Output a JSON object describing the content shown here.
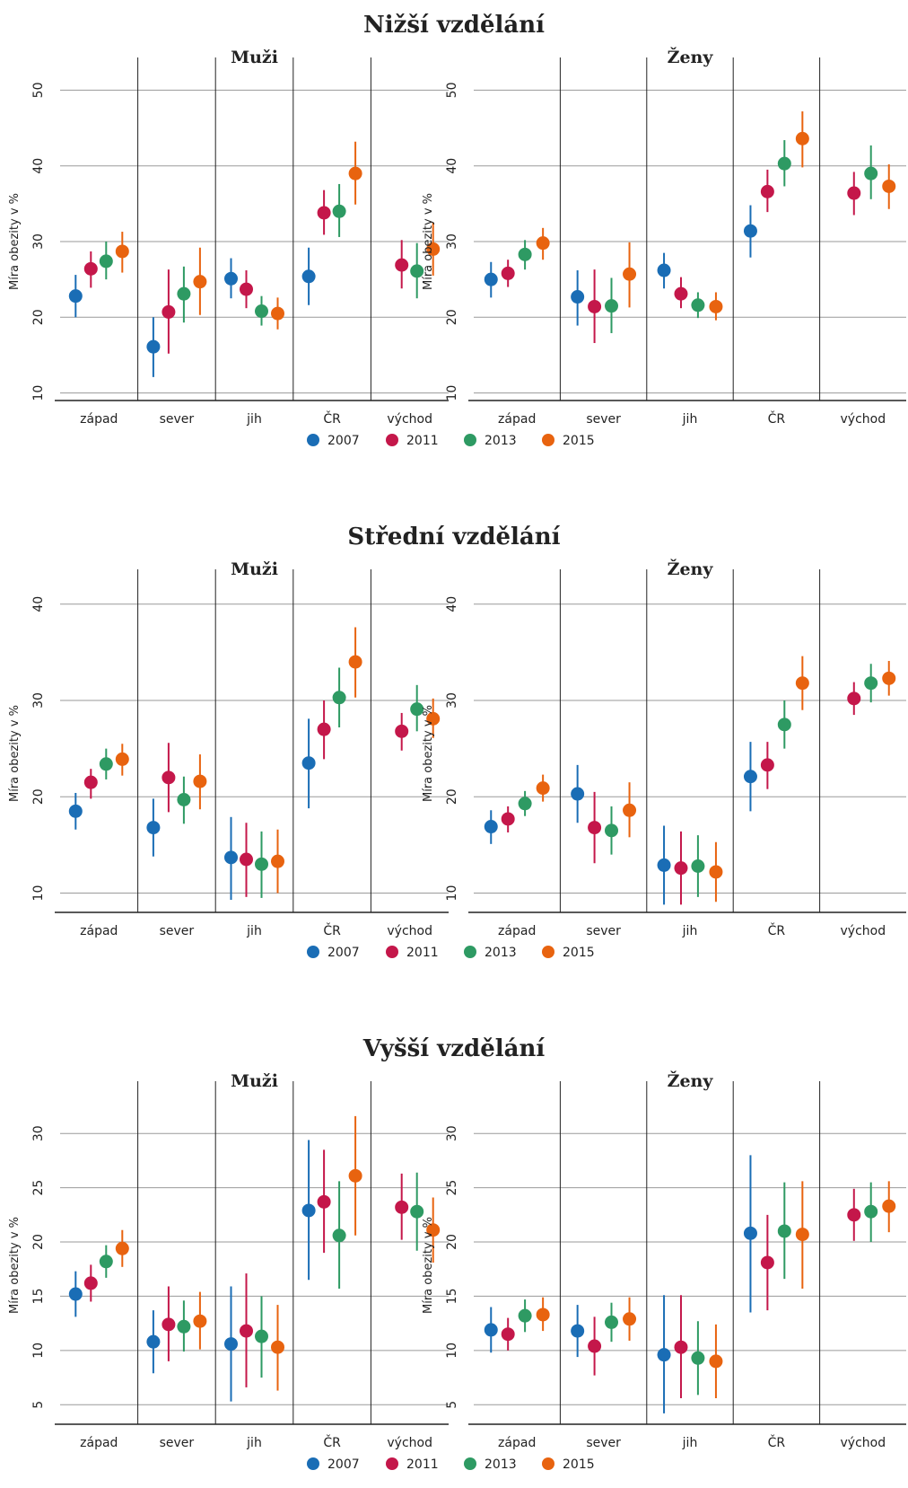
{
  "colors": {
    "2007": "#1a6db5",
    "2011": "#c4174a",
    "2013": "#2e9a63",
    "2015": "#e8630f",
    "grid": "#9a9a9a",
    "axis": "#222222"
  },
  "chart_data": [
    {
      "type": "scatter",
      "title": "Nižší vzdělání",
      "ylabel": "Míra obezity v %",
      "categories": [
        "západ",
        "sever",
        "jih",
        "ČR",
        "východ"
      ],
      "legend": [
        "2007",
        "2011",
        "2013",
        "2015"
      ],
      "legend_position": "bottom",
      "ylim": [
        9,
        51
      ],
      "yticks": [
        10,
        20,
        30,
        40,
        50
      ],
      "panels": [
        {
          "title": "Muži",
          "series": [
            {
              "name": "2007",
              "values": [
                22.8,
                16.1,
                25.1,
                25.4,
                null
              ],
              "low": [
                20.0,
                12.1,
                22.5,
                21.6,
                null
              ],
              "high": [
                25.6,
                20.0,
                27.8,
                29.2,
                null
              ]
            },
            {
              "name": "2011",
              "values": [
                26.4,
                20.7,
                23.7,
                33.8,
                26.9
              ],
              "low": [
                23.9,
                15.2,
                21.2,
                30.9,
                23.8
              ],
              "high": [
                28.7,
                26.3,
                26.2,
                36.8,
                30.2
              ]
            },
            {
              "name": "2013",
              "values": [
                27.4,
                23.1,
                20.8,
                34.0,
                26.1
              ],
              "low": [
                25.0,
                19.3,
                18.9,
                30.6,
                22.5
              ],
              "high": [
                30.0,
                26.7,
                22.8,
                37.6,
                29.8
              ]
            },
            {
              "name": "2015",
              "values": [
                28.7,
                24.7,
                20.5,
                39.0,
                29.0
              ],
              "low": [
                25.9,
                20.3,
                18.4,
                34.9,
                25.5
              ],
              "high": [
                31.3,
                29.2,
                22.6,
                43.2,
                32.5
              ]
            }
          ]
        },
        {
          "title": "Ženy",
          "series": [
            {
              "name": "2007",
              "values": [
                25.0,
                22.7,
                26.2,
                31.4,
                null
              ],
              "low": [
                22.6,
                18.9,
                23.8,
                27.9,
                null
              ],
              "high": [
                27.3,
                26.2,
                28.5,
                34.8,
                null
              ]
            },
            {
              "name": "2011",
              "values": [
                25.8,
                21.4,
                23.1,
                36.6,
                36.4
              ],
              "low": [
                24.0,
                16.6,
                21.2,
                33.9,
                33.5
              ],
              "high": [
                27.6,
                26.3,
                25.3,
                39.5,
                39.2
              ]
            },
            {
              "name": "2013",
              "values": [
                28.3,
                21.5,
                21.6,
                40.3,
                39.0
              ],
              "low": [
                26.3,
                17.9,
                19.9,
                37.3,
                35.6
              ],
              "high": [
                30.2,
                25.2,
                23.3,
                43.4,
                42.7
              ]
            },
            {
              "name": "2015",
              "values": [
                29.8,
                25.7,
                21.4,
                43.6,
                37.3
              ],
              "low": [
                27.6,
                21.3,
                19.6,
                39.8,
                34.3
              ],
              "high": [
                31.8,
                29.9,
                23.3,
                47.2,
                40.2
              ]
            }
          ]
        }
      ]
    },
    {
      "type": "scatter",
      "title": "Střední vzdělání",
      "ylabel": "Míra obezity v %",
      "categories": [
        "západ",
        "sever",
        "jih",
        "ČR",
        "východ"
      ],
      "legend": [
        "2007",
        "2011",
        "2013",
        "2015"
      ],
      "legend_position": "bottom",
      "ylim": [
        8,
        41
      ],
      "yticks": [
        10,
        20,
        30,
        40
      ],
      "panels": [
        {
          "title": "Muži",
          "series": [
            {
              "name": "2007",
              "values": [
                18.5,
                16.8,
                13.7,
                23.5,
                null
              ],
              "low": [
                16.6,
                13.8,
                9.3,
                18.8,
                null
              ],
              "high": [
                20.4,
                19.8,
                17.9,
                28.1,
                null
              ]
            },
            {
              "name": "2011",
              "values": [
                21.5,
                22.0,
                13.5,
                27.0,
                26.8
              ],
              "low": [
                19.8,
                18.4,
                9.6,
                23.9,
                24.8
              ],
              "high": [
                22.9,
                25.6,
                17.3,
                30.0,
                28.7
              ]
            },
            {
              "name": "2013",
              "values": [
                23.4,
                19.7,
                13.0,
                30.3,
                29.1
              ],
              "low": [
                21.8,
                17.2,
                9.5,
                27.2,
                26.8
              ],
              "high": [
                25.0,
                22.1,
                16.4,
                33.4,
                31.6
              ]
            },
            {
              "name": "2015",
              "values": [
                23.9,
                21.6,
                13.3,
                34.0,
                28.1
              ],
              "low": [
                22.2,
                18.7,
                10.0,
                30.3,
                26.1
              ],
              "high": [
                25.5,
                24.4,
                16.6,
                37.6,
                30.2
              ]
            }
          ]
        },
        {
          "title": "Ženy",
          "series": [
            {
              "name": "2007",
              "values": [
                16.9,
                20.3,
                12.9,
                22.1,
                null
              ],
              "low": [
                15.1,
                17.3,
                8.8,
                18.5,
                null
              ],
              "high": [
                18.6,
                23.3,
                17.0,
                25.7,
                null
              ]
            },
            {
              "name": "2011",
              "values": [
                17.7,
                16.8,
                12.6,
                23.3,
                30.2
              ],
              "low": [
                16.3,
                13.1,
                8.8,
                20.8,
                28.5
              ],
              "high": [
                19.0,
                20.5,
                16.4,
                25.7,
                31.9
              ]
            },
            {
              "name": "2013",
              "values": [
                19.3,
                16.5,
                12.8,
                27.5,
                31.8
              ],
              "low": [
                18.0,
                14.0,
                9.6,
                25.0,
                29.8
              ],
              "high": [
                20.6,
                19.0,
                16.0,
                30.0,
                33.8
              ]
            },
            {
              "name": "2015",
              "values": [
                20.9,
                18.6,
                12.2,
                31.8,
                32.3
              ],
              "low": [
                19.5,
                15.8,
                9.1,
                29.0,
                30.5
              ],
              "high": [
                22.3,
                21.5,
                15.3,
                34.6,
                34.1
              ]
            }
          ]
        }
      ]
    },
    {
      "type": "scatter",
      "title": "Vyšší vzdělání",
      "ylabel": "Míra obezity v %",
      "categories": [
        "západ",
        "sever",
        "jih",
        "ČR",
        "východ"
      ],
      "legend": [
        "2007",
        "2011",
        "2013",
        "2015"
      ],
      "legend_position": "bottom",
      "ylim": [
        3.2,
        32.5
      ],
      "yticks": [
        5,
        10,
        15,
        20,
        25,
        30
      ],
      "panels": [
        {
          "title": "Muži",
          "series": [
            {
              "name": "2007",
              "values": [
                15.2,
                10.8,
                10.6,
                22.9,
                null
              ],
              "low": [
                13.1,
                7.9,
                5.3,
                16.5,
                null
              ],
              "high": [
                17.3,
                13.7,
                15.9,
                29.4,
                null
              ]
            },
            {
              "name": "2011",
              "values": [
                16.2,
                12.4,
                11.8,
                23.7,
                23.2
              ],
              "low": [
                14.5,
                9.0,
                6.6,
                19.0,
                20.2
              ],
              "high": [
                17.9,
                15.9,
                17.1,
                28.5,
                26.3
              ]
            },
            {
              "name": "2013",
              "values": [
                18.2,
                12.2,
                11.3,
                20.6,
                22.8
              ],
              "low": [
                16.7,
                9.9,
                7.5,
                15.7,
                19.2
              ],
              "high": [
                19.7,
                14.6,
                15.0,
                25.6,
                26.4
              ]
            },
            {
              "name": "2015",
              "values": [
                19.4,
                12.7,
                10.3,
                26.1,
                21.1
              ],
              "low": [
                17.7,
                10.1,
                6.3,
                20.6,
                18.1
              ],
              "high": [
                21.1,
                15.4,
                14.2,
                31.6,
                24.1
              ]
            }
          ]
        },
        {
          "title": "Ženy",
          "series": [
            {
              "name": "2007",
              "values": [
                11.9,
                11.8,
                9.6,
                20.8,
                null
              ],
              "low": [
                9.8,
                9.4,
                4.2,
                13.5,
                null
              ],
              "high": [
                14.0,
                14.2,
                15.1,
                28.0,
                null
              ]
            },
            {
              "name": "2011",
              "values": [
                11.5,
                10.4,
                10.3,
                18.1,
                22.5
              ],
              "low": [
                10.0,
                7.7,
                5.6,
                13.7,
                20.1
              ],
              "high": [
                13.0,
                13.1,
                15.1,
                22.5,
                24.9
              ]
            },
            {
              "name": "2013",
              "values": [
                13.2,
                12.6,
                9.3,
                21.0,
                22.8
              ],
              "low": [
                11.7,
                10.8,
                5.9,
                16.6,
                20.0
              ],
              "high": [
                14.7,
                14.4,
                12.7,
                25.5,
                25.5
              ]
            },
            {
              "name": "2015",
              "values": [
                13.3,
                12.9,
                9.0,
                20.7,
                23.3
              ],
              "low": [
                11.8,
                10.9,
                5.6,
                15.7,
                20.9
              ],
              "high": [
                14.9,
                14.9,
                12.4,
                25.6,
                25.6
              ]
            }
          ]
        }
      ]
    }
  ]
}
